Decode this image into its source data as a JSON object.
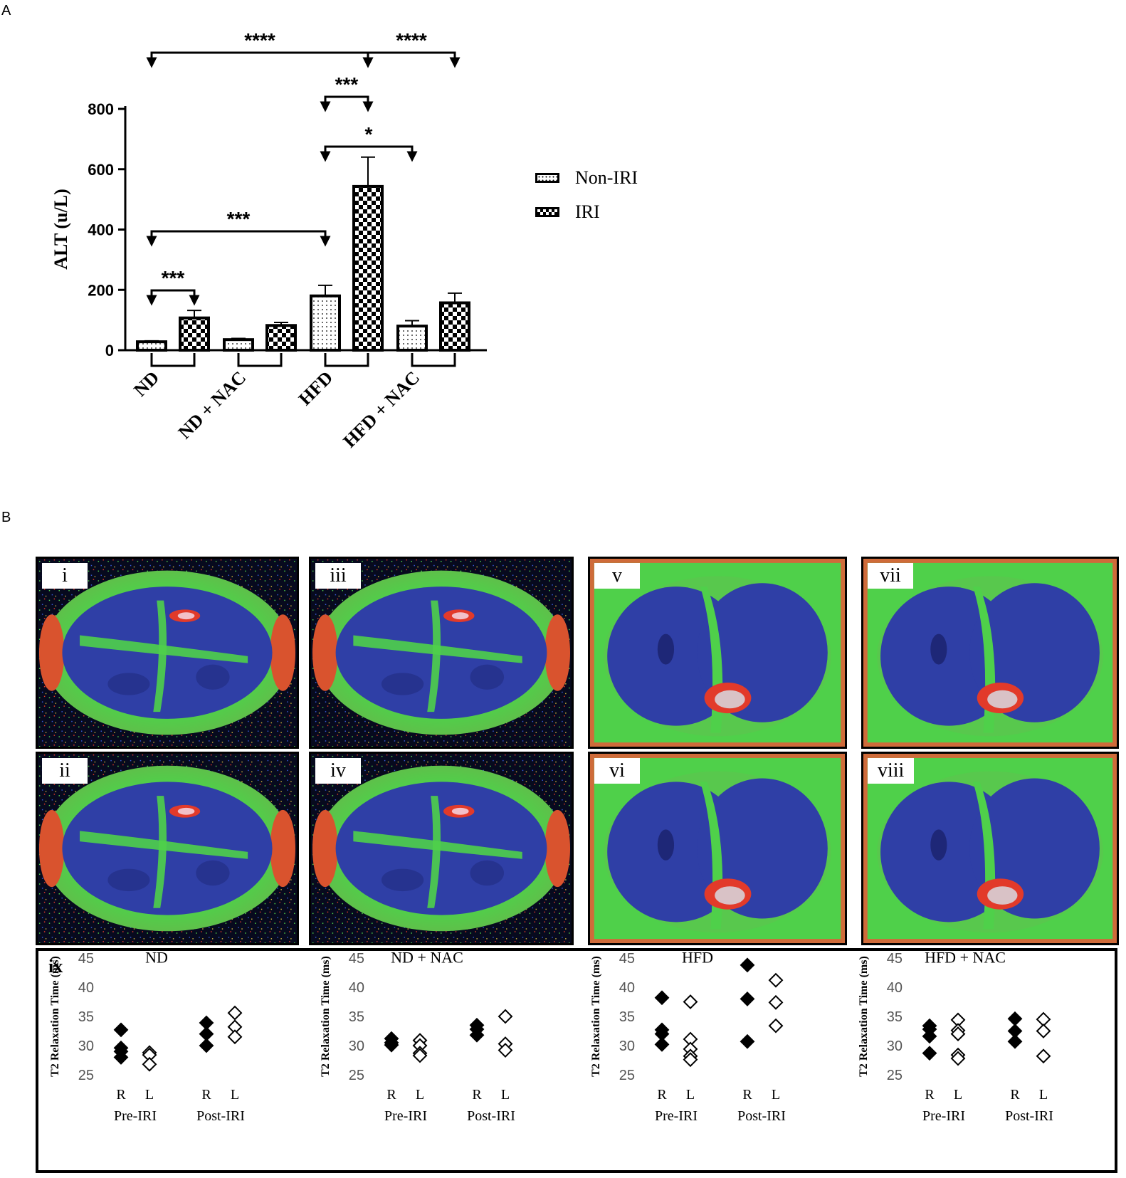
{
  "panel_a_label": "A",
  "panel_b_label": "B",
  "legend": [
    {
      "label": "Non-IRI",
      "pattern": "dots"
    },
    {
      "label": "IRI",
      "pattern": "checker"
    }
  ],
  "mri_panels": [
    {
      "label": "i",
      "color_scheme": "blue-green-red"
    },
    {
      "label": "ii",
      "color_scheme": "blue-green-red"
    },
    {
      "label": "iii",
      "color_scheme": "blue-green-red"
    },
    {
      "label": "iv",
      "color_scheme": "blue-green-red"
    },
    {
      "label": "v",
      "color_scheme": "blue-green-red"
    },
    {
      "label": "vi",
      "color_scheme": "blue-green-red"
    },
    {
      "label": "vii",
      "color_scheme": "blue-green-red"
    },
    {
      "label": "viii",
      "color_scheme": "blue-green-red"
    }
  ],
  "ix_label": "ix",
  "colors": {
    "bar_edge": "#000000",
    "mri_blue": "#2f3fa6",
    "mri_green": "#4fd04a",
    "mri_red": "#e23a2a"
  },
  "chart_data": [
    {
      "type": "bar",
      "ylabel": "ALT (u/L)",
      "ylim": [
        0,
        800
      ],
      "yticks": [
        0,
        200,
        400,
        600,
        800
      ],
      "categories": [
        "ND",
        "ND + NAC",
        "HFD",
        "HFD + NAC"
      ],
      "series": [
        {
          "name": "Non-IRI",
          "values": [
            28,
            35,
            180,
            80
          ],
          "errors": [
            3,
            4,
            35,
            18
          ]
        },
        {
          "name": "IRI",
          "values": [
            107,
            82,
            543,
            157
          ],
          "errors": [
            25,
            10,
            97,
            32
          ]
        }
      ],
      "significance": [
        {
          "label": "****",
          "from": "ND Non-IRI",
          "to": "HFD IRI"
        },
        {
          "label": "****",
          "from": "HFD IRI",
          "to": "HFD + NAC IRI"
        },
        {
          "label": "***",
          "from": "HFD Non-IRI",
          "to": "HFD IRI"
        },
        {
          "label": "*",
          "from": "HFD Non-IRI",
          "to": "HFD + NAC Non-IRI"
        },
        {
          "label": "***",
          "from": "ND Non-IRI",
          "to": "HFD Non-IRI"
        },
        {
          "label": "***",
          "from": "ND Non-IRI",
          "to": "ND IRI"
        }
      ]
    },
    {
      "type": "scatter",
      "title": "ND",
      "ylabel": "T2 Relaxation Time (ms)",
      "ylim": [
        25,
        45
      ],
      "yticks": [
        25,
        30,
        35,
        40,
        45
      ],
      "x_tick_labels": [
        "R",
        "L",
        "R",
        "L"
      ],
      "group_labels": [
        "Pre-IRI",
        "Post-IRI"
      ],
      "series": [
        {
          "x": "Pre-IRI R",
          "filled": true,
          "values": [
            32.7,
            29.6,
            29.0,
            28.0
          ]
        },
        {
          "x": "Pre-IRI L",
          "filled": false,
          "values": [
            28.8,
            28.4,
            26.8
          ]
        },
        {
          "x": "Post-IRI R",
          "filled": true,
          "values": [
            33.9,
            32.0,
            30.0
          ]
        },
        {
          "x": "Post-IRI L",
          "filled": false,
          "values": [
            35.6,
            33.2,
            31.5
          ]
        }
      ]
    },
    {
      "type": "scatter",
      "title": "ND + NAC",
      "ylabel": "T2 Relaxation Time (ms)",
      "ylim": [
        25,
        45
      ],
      "yticks": [
        25,
        30,
        35,
        40,
        45
      ],
      "x_tick_labels": [
        "R",
        "L",
        "R",
        "L"
      ],
      "group_labels": [
        "Pre-IRI",
        "Post-IRI"
      ],
      "series": [
        {
          "x": "Pre-IRI R",
          "filled": true,
          "values": [
            31.2,
            30.5,
            30.1
          ]
        },
        {
          "x": "Pre-IRI L",
          "filled": false,
          "values": [
            30.9,
            30.0,
            28.7,
            28.3
          ]
        },
        {
          "x": "Post-IRI R",
          "filled": true,
          "values": [
            33.5,
            32.8,
            31.8
          ]
        },
        {
          "x": "Post-IRI L",
          "filled": false,
          "values": [
            35.0,
            30.3,
            29.2
          ]
        }
      ]
    },
    {
      "type": "scatter",
      "title": "HFD",
      "ylabel": "T2 Relaxation Time (ms)",
      "ylim": [
        25,
        45
      ],
      "yticks": [
        25,
        30,
        35,
        40,
        45
      ],
      "x_tick_labels": [
        "R",
        "L",
        "R",
        "L"
      ],
      "group_labels": [
        "Pre-IRI",
        "Post-IRI"
      ],
      "series": [
        {
          "x": "Pre-IRI R",
          "filled": true,
          "values": [
            38.2,
            32.7,
            32.0,
            30.2
          ]
        },
        {
          "x": "Pre-IRI L",
          "filled": false,
          "values": [
            37.5,
            31.1,
            29.4,
            28.2,
            27.6
          ]
        },
        {
          "x": "Post-IRI R",
          "filled": true,
          "values": [
            43.8,
            38.0,
            30.7
          ]
        },
        {
          "x": "Post-IRI L",
          "filled": false,
          "values": [
            41.2,
            37.4,
            33.4
          ]
        }
      ]
    },
    {
      "type": "scatter",
      "title": "HFD + NAC",
      "ylabel": "T2 Relaxation Time (ms)",
      "ylim": [
        25,
        45
      ],
      "yticks": [
        25,
        30,
        35,
        40,
        45
      ],
      "x_tick_labels": [
        "R",
        "L",
        "R",
        "L"
      ],
      "group_labels": [
        "Pre-IRI",
        "Post-IRI"
      ],
      "series": [
        {
          "x": "Pre-IRI R",
          "filled": true,
          "values": [
            33.4,
            32.8,
            31.6,
            28.7
          ]
        },
        {
          "x": "Pre-IRI L",
          "filled": false,
          "values": [
            34.4,
            32.6,
            32.0,
            28.4,
            27.8
          ]
        },
        {
          "x": "Post-IRI R",
          "filled": true,
          "values": [
            34.6,
            32.5,
            30.7
          ]
        },
        {
          "x": "Post-IRI L",
          "filled": false,
          "values": [
            34.5,
            32.5,
            28.2
          ]
        }
      ]
    }
  ]
}
